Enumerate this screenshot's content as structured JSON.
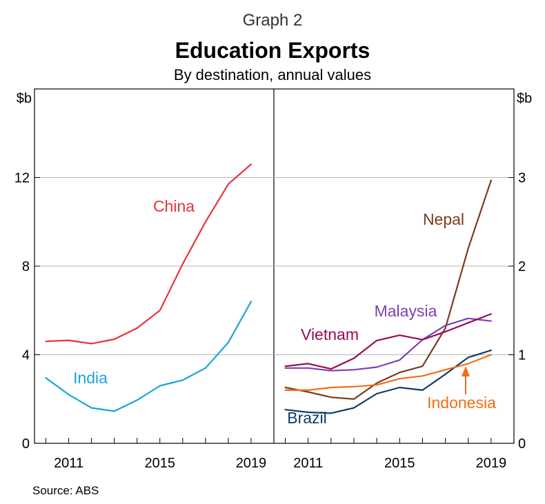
{
  "header": {
    "graph_number": "Graph 2",
    "title": "Education Exports",
    "subtitle": "By destination, annual values"
  },
  "source": "Source:   ABS",
  "chart_data": [
    {
      "type": "line",
      "panel": "left",
      "unit_label": "$b",
      "ylim": [
        0,
        16
      ],
      "yticks": [
        0,
        4,
        8,
        12
      ],
      "xlim": [
        2009.5,
        2020
      ],
      "xticks": [
        2011,
        2015,
        2019
      ],
      "x": [
        2010,
        2011,
        2012,
        2013,
        2014,
        2015,
        2016,
        2017,
        2018,
        2019
      ],
      "series": [
        {
          "name": "China",
          "color": "#e8323c",
          "values": [
            4.6,
            4.65,
            4.5,
            4.7,
            5.2,
            6.0,
            8.1,
            10.0,
            11.7,
            12.6
          ],
          "label_pos": "upper-middle"
        },
        {
          "name": "India",
          "color": "#1aa3d9",
          "values": [
            2.95,
            2.2,
            1.6,
            1.45,
            1.95,
            2.6,
            2.85,
            3.4,
            4.55,
            6.4
          ],
          "label_pos": "lower-left"
        }
      ]
    },
    {
      "type": "line",
      "panel": "right",
      "unit_label": "$b",
      "ylim": [
        0,
        4
      ],
      "yticks": [
        0,
        1,
        2,
        3
      ],
      "xlim": [
        2009.5,
        2020
      ],
      "xticks": [
        2011,
        2015,
        2019
      ],
      "x": [
        2010,
        2011,
        2012,
        2013,
        2014,
        2015,
        2016,
        2017,
        2018,
        2019
      ],
      "series": [
        {
          "name": "Nepal",
          "color": "#7b3a1e",
          "values": [
            0.63,
            0.58,
            0.52,
            0.5,
            0.68,
            0.8,
            0.87,
            1.3,
            2.2,
            2.97
          ]
        },
        {
          "name": "Malaysia",
          "color": "#7d3fb5",
          "values": [
            0.85,
            0.85,
            0.82,
            0.83,
            0.86,
            0.94,
            1.17,
            1.33,
            1.41,
            1.38
          ]
        },
        {
          "name": "Vietnam",
          "color": "#9b0a4f",
          "values": [
            0.87,
            0.9,
            0.84,
            0.96,
            1.16,
            1.22,
            1.17,
            1.26,
            1.36,
            1.46
          ]
        },
        {
          "name": "Brazil",
          "color": "#0d3b66",
          "values": [
            0.38,
            0.35,
            0.34,
            0.4,
            0.56,
            0.63,
            0.6,
            0.78,
            0.97,
            1.05
          ]
        },
        {
          "name": "Indonesia",
          "color": "#f26c16",
          "values": [
            0.6,
            0.6,
            0.63,
            0.64,
            0.66,
            0.73,
            0.76,
            0.83,
            0.9,
            1.0
          ]
        }
      ]
    }
  ]
}
